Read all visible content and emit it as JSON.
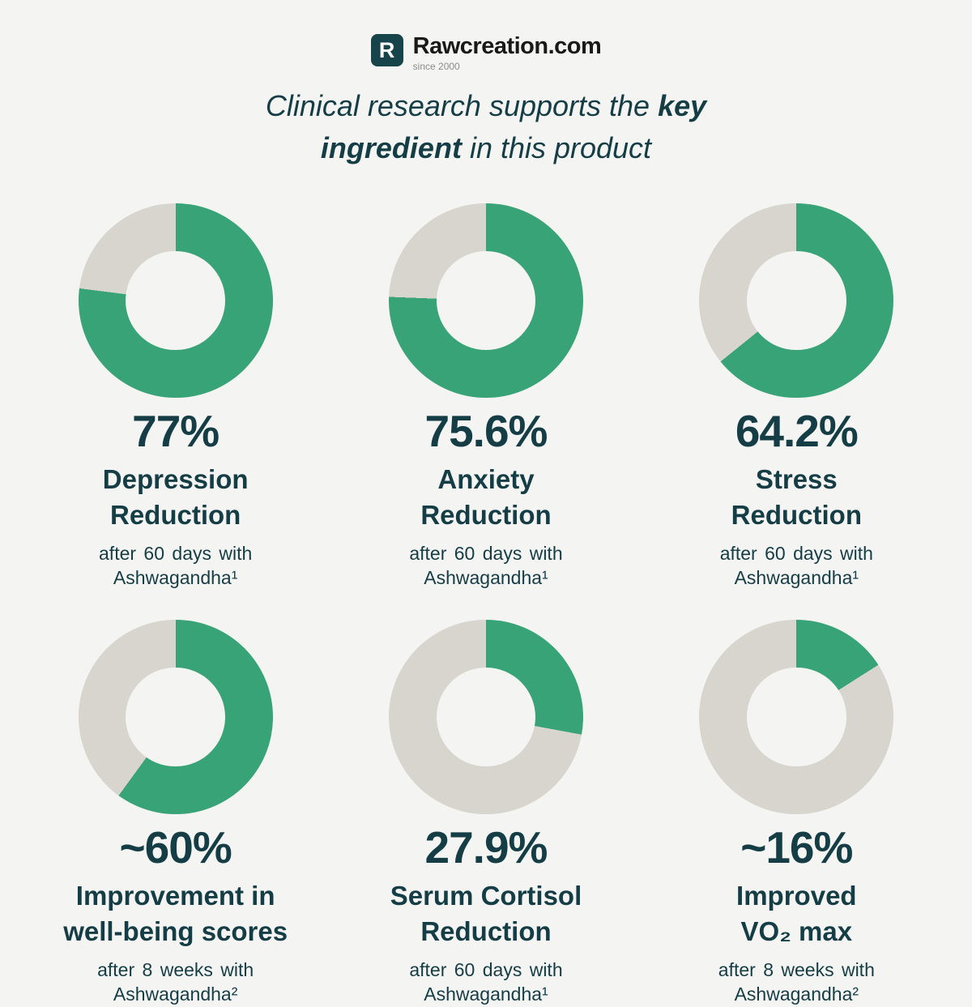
{
  "colors": {
    "background": "#f4f4f2",
    "text_dark": "#143d46",
    "green": "#38a377",
    "gray": "#d8d4ce",
    "logo_square": "#17434a"
  },
  "logo": {
    "mark_letter": "R",
    "name": "Rawcreation.com",
    "tagline": "since 2000"
  },
  "title": {
    "line1_regular": "Clinical research supports the ",
    "line1_bold": "key",
    "line2_bold": "ingredient",
    "line2_regular": " in this product"
  },
  "chart_data": {
    "type": "pie",
    "variant": "donut",
    "start_angle_deg": 0,
    "direction": "clockwise",
    "colors": {
      "value": "#38a377",
      "remainder": "#d8d4ce"
    },
    "items": [
      {
        "value_pct": 77,
        "display": "77%",
        "label_lines": [
          "Depression",
          "Reduction"
        ],
        "note_lines": [
          "after 60 days with",
          "Ashwagandha¹"
        ]
      },
      {
        "value_pct": 75.6,
        "display": "75.6%",
        "label_lines": [
          "Anxiety",
          "Reduction"
        ],
        "note_lines": [
          "after 60 days with",
          "Ashwagandha¹"
        ]
      },
      {
        "value_pct": 64.2,
        "display": "64.2%",
        "label_lines": [
          "Stress",
          "Reduction"
        ],
        "note_lines": [
          "after 60 days with",
          "Ashwagandha¹"
        ]
      },
      {
        "value_pct": 60,
        "display": "~60%",
        "label_lines": [
          "Improvement in",
          "well-being scores"
        ],
        "note_lines": [
          "after 8 weeks with",
          "Ashwagandha²"
        ]
      },
      {
        "value_pct": 27.9,
        "display": "27.9%",
        "label_lines": [
          "Serum Cortisol",
          "Reduction"
        ],
        "note_lines": [
          "after 60 days with",
          "Ashwagandha¹"
        ]
      },
      {
        "value_pct": 16,
        "display": "~16%",
        "label_lines": [
          "Improved",
          "VO₂ max"
        ],
        "note_lines": [
          "after 8 weeks with",
          "Ashwagandha²"
        ]
      }
    ]
  }
}
